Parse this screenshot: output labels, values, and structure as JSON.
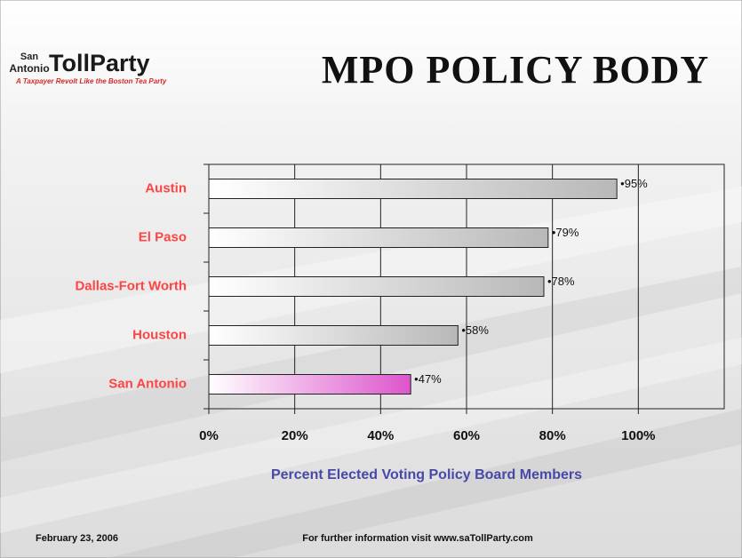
{
  "logo": {
    "top": "San",
    "left": "Antonio",
    "name": "TollParty",
    "tagline": "A Taxpayer Revolt Like the Boston Tea Party"
  },
  "chart_data": {
    "type": "hbar",
    "title": "MPO POLICY BODY",
    "categories": [
      "Austin",
      "El Paso",
      "Dallas-Fort Worth",
      "Houston",
      "San Antonio"
    ],
    "values": [
      95,
      79,
      78,
      58,
      47
    ],
    "value_labels": [
      "•95%",
      "•79%",
      "•78%",
      "•58%",
      "•47%"
    ],
    "colors": [
      "#b8b8b8",
      "#b8b8b8",
      "#b8b8b8",
      "#b8b8b8",
      "#dd55cc"
    ],
    "xlim": [
      0,
      120
    ],
    "xticks": [
      {
        "value": 0,
        "label": "0%"
      },
      {
        "value": 20,
        "label": "20%"
      },
      {
        "value": 40,
        "label": "40%"
      },
      {
        "value": 60,
        "label": "60%"
      },
      {
        "value": 80,
        "label": "80%"
      },
      {
        "value": 100,
        "label": "100%"
      }
    ],
    "xlabel": "Percent Elected Voting Policy Board Members",
    "grid": true
  },
  "footer": {
    "date": "February 23, 2006",
    "info": "For further information visit www.saTollParty.com"
  }
}
